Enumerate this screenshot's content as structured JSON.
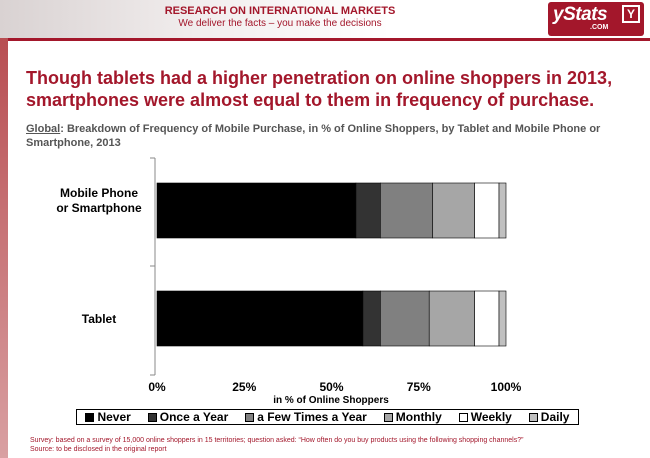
{
  "header": {
    "title": "RESEARCH ON INTERNATIONAL MARKETS",
    "tagline": "We deliver the facts – you make the decisions"
  },
  "logo": {
    "text": "yStats",
    "sub": ".COM"
  },
  "headline": "Though tablets had a higher penetration on online shoppers in 2013, smartphones were almost equal to them in frequency of purchase.",
  "subtitle": {
    "region": "Global",
    "text": ": Breakdown of Frequency of Mobile Purchase, in % of Online Shoppers, by Tablet and Mobile Phone or Smartphone, 2013"
  },
  "chart_data": {
    "type": "bar",
    "orientation": "horizontal",
    "stacked": true,
    "categories": [
      "Mobile Phone or Smartphone",
      "Tablet"
    ],
    "xlabel": "in % of Online Shoppers",
    "xlim": [
      0,
      100
    ],
    "x_ticks": [
      "0%",
      "25%",
      "50%",
      "75%",
      "100%"
    ],
    "series": [
      {
        "name": "Never",
        "values": [
          57,
          59
        ],
        "color": "#000000"
      },
      {
        "name": "Once a Year",
        "values": [
          7,
          5
        ],
        "color": "#333333"
      },
      {
        "name": "a Few Times a Year",
        "values": [
          15,
          14
        ],
        "color": "#808080"
      },
      {
        "name": "Monthly",
        "values": [
          12,
          13
        ],
        "color": "#a6a6a6"
      },
      {
        "name": "Weekly",
        "values": [
          7,
          7
        ],
        "color": "#ffffff"
      },
      {
        "name": "Daily",
        "values": [
          2,
          2
        ],
        "color": "#c0c0c0"
      }
    ],
    "legend_position": "bottom",
    "grid": false
  },
  "footnotes": {
    "survey": "Survey: based on a survey of 15,000 online shoppers in 15 territories; question asked: “How often do you buy products using the following shopping channels?”",
    "source": "Source: to be disclosed in the original report"
  }
}
